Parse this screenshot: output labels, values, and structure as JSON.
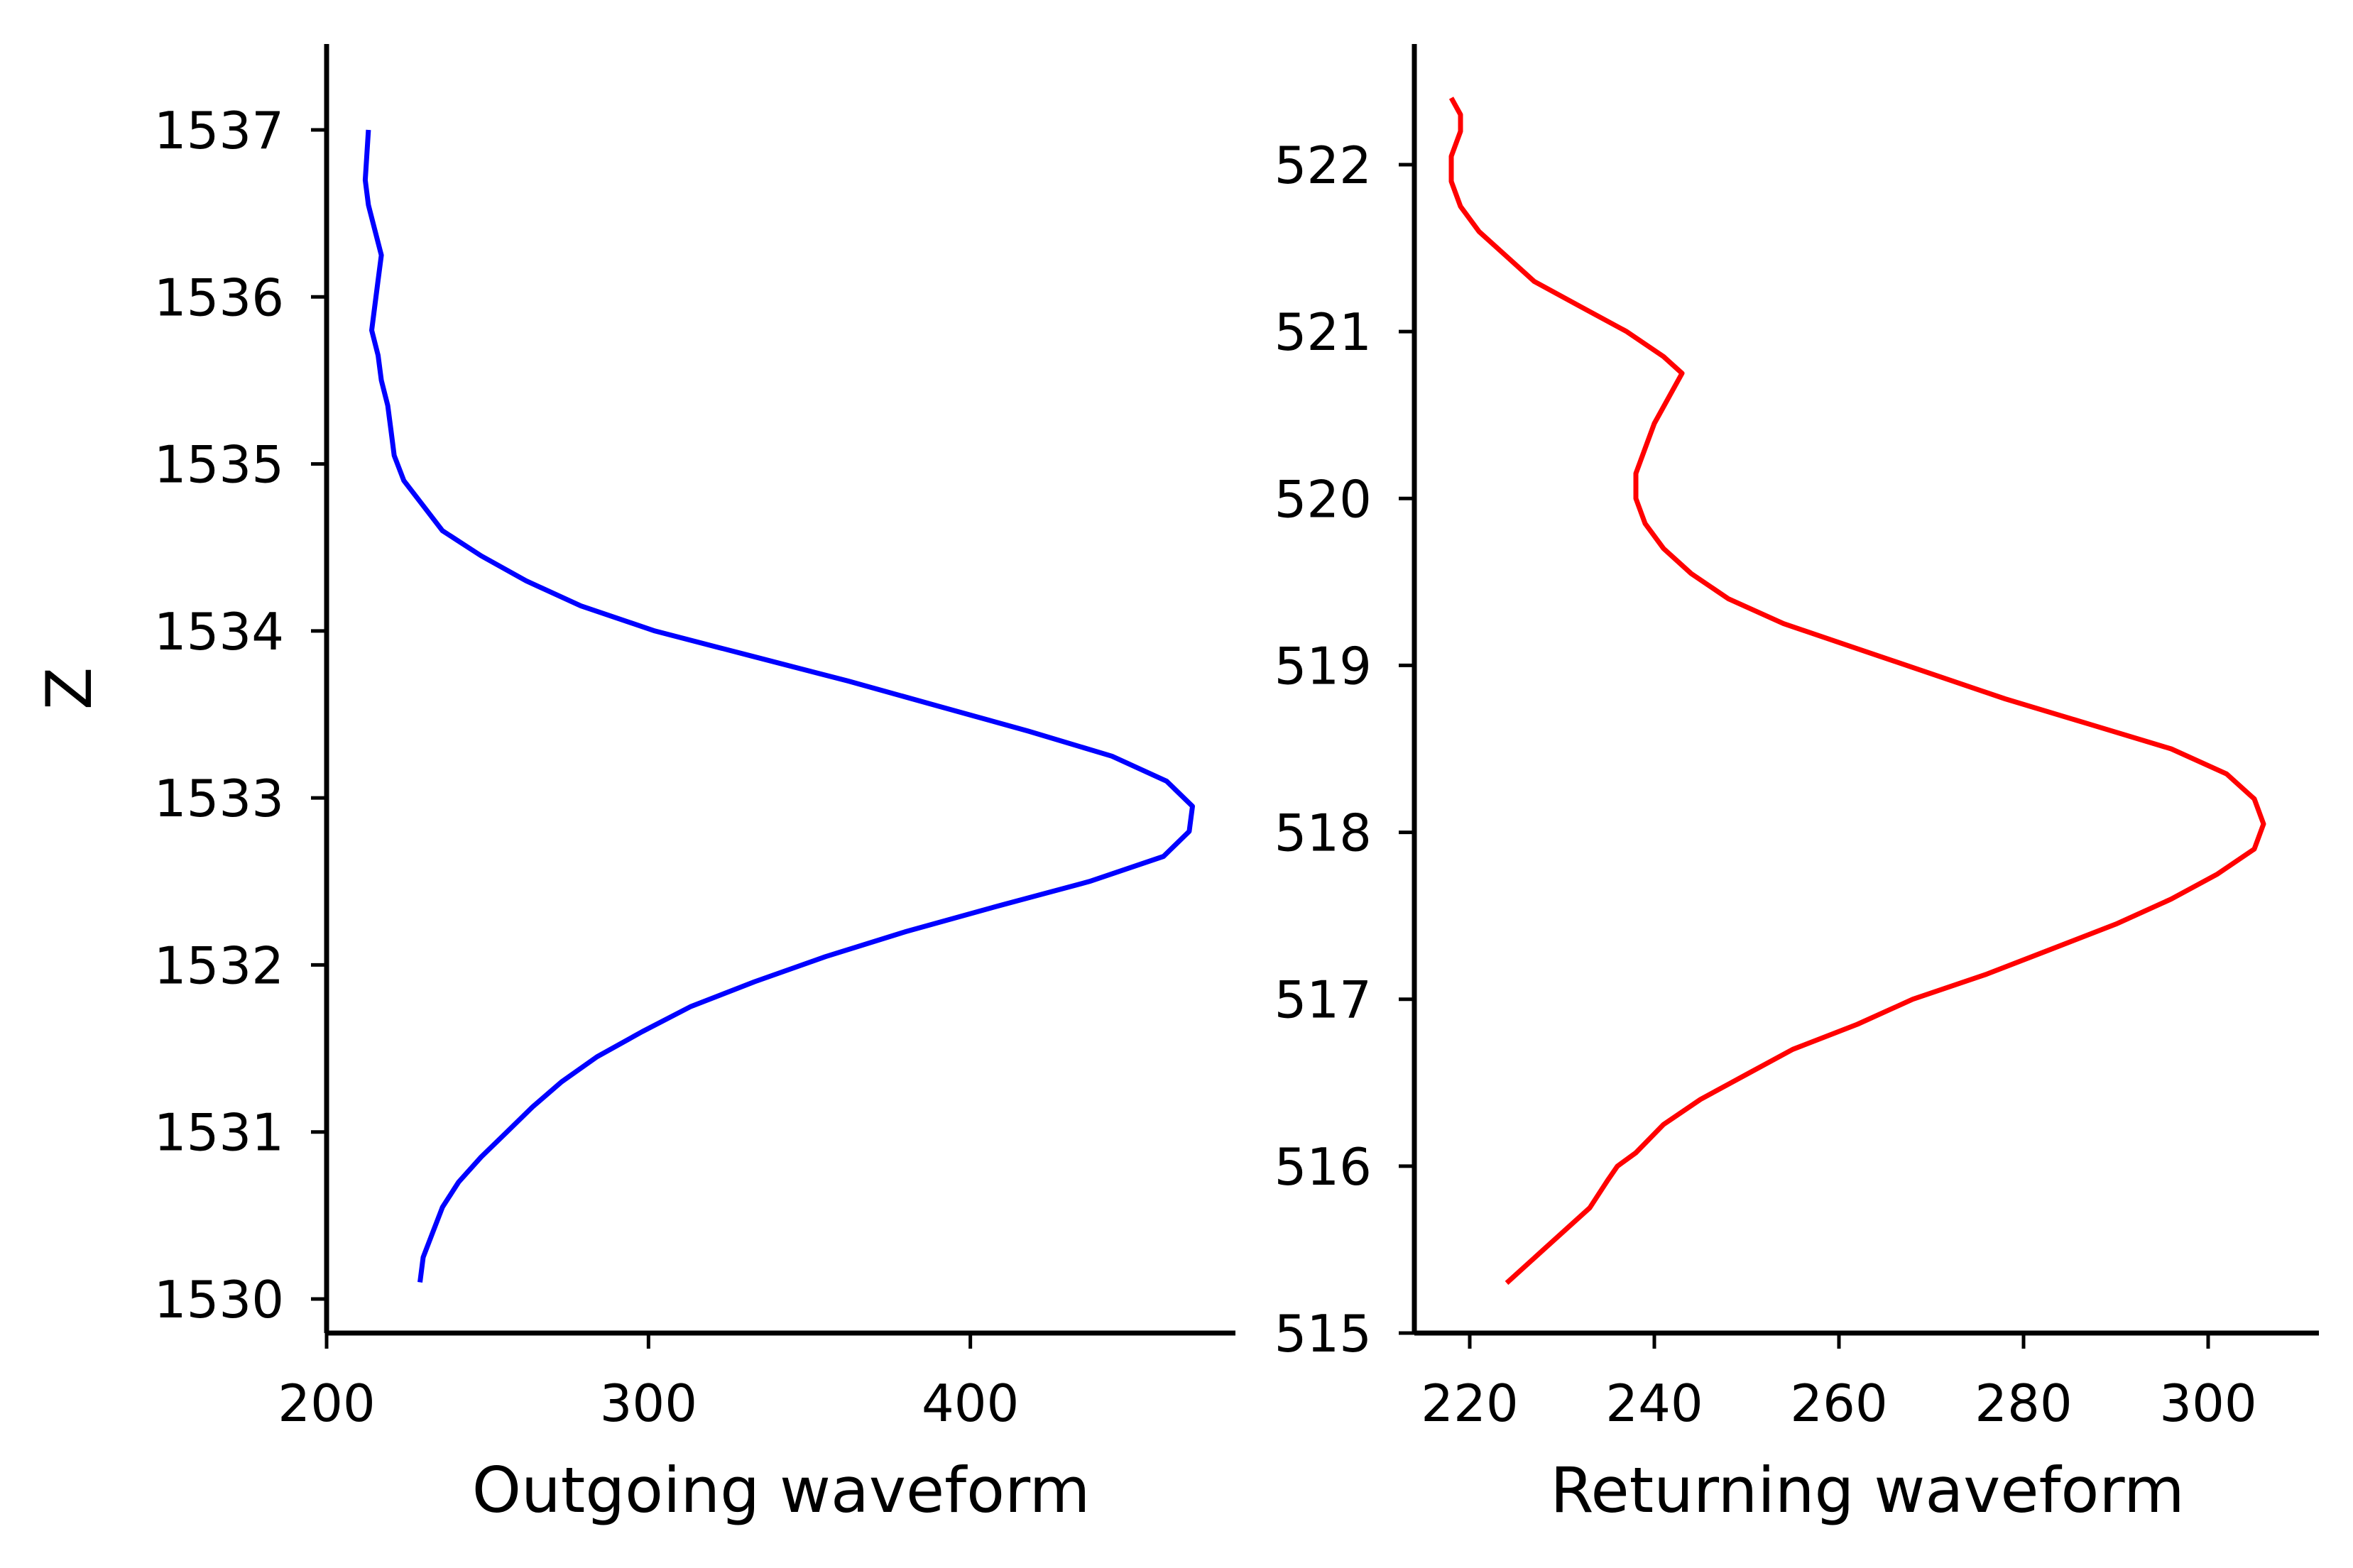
{
  "chart_data": [
    {
      "type": "line",
      "title": "",
      "xlabel": "Outgoing waveform",
      "ylabel": "Z",
      "xlim": [
        200,
        470
      ],
      "ylim": [
        1529.8,
        1537.5
      ],
      "xticks": [
        200,
        300,
        400
      ],
      "yticks": [
        1530,
        1531,
        1532,
        1533,
        1534,
        1535,
        1536,
        1537
      ],
      "grid": false,
      "series": [
        {
          "color": "#0000ff",
          "x": [
            229,
            230,
            233,
            236,
            241,
            248,
            256,
            264,
            273,
            284,
            298,
            313,
            333,
            355,
            380,
            408,
            437,
            460,
            468,
            469,
            461,
            444,
            418,
            390,
            362,
            332,
            302,
            279,
            262,
            248,
            236,
            230,
            224,
            221,
            220,
            219,
            217,
            216,
            214,
            215,
            216,
            217,
            215,
            213,
            212,
            213
          ],
          "y": [
            1530.1,
            1530.25,
            1530.4,
            1530.55,
            1530.7,
            1530.85,
            1531.0,
            1531.15,
            1531.3,
            1531.45,
            1531.6,
            1531.75,
            1531.9,
            1532.05,
            1532.2,
            1532.35,
            1532.5,
            1532.65,
            1532.8,
            1532.95,
            1533.1,
            1533.25,
            1533.4,
            1533.55,
            1533.7,
            1533.85,
            1534.0,
            1534.15,
            1534.3,
            1534.45,
            1534.6,
            1534.75,
            1534.9,
            1535.05,
            1535.2,
            1535.35,
            1535.5,
            1535.65,
            1535.8,
            1535.95,
            1536.1,
            1536.25,
            1536.4,
            1536.55,
            1536.7,
            1537.0
          ]
        }
      ]
    },
    {
      "type": "line",
      "title": "",
      "xlabel": "Returning waveform",
      "ylabel": "",
      "xlim": [
        214,
        312
      ],
      "ylim": [
        514.9,
        522.7
      ],
      "xticks": [
        220,
        240,
        260,
        280,
        300
      ],
      "yticks": [
        515,
        516,
        517,
        518,
        519,
        520,
        521,
        522
      ],
      "grid": false,
      "series": [
        {
          "color": "#ff0000",
          "x": [
            224,
            228,
            233,
            235,
            236,
            238,
            241,
            245,
            250,
            255,
            262,
            268,
            276,
            283,
            290,
            296,
            301,
            305,
            306,
            305,
            302,
            296,
            287,
            278,
            270,
            262,
            254,
            248,
            244,
            241,
            239,
            238,
            238,
            239,
            240,
            241,
            242,
            243,
            241,
            237,
            232,
            227,
            224,
            221,
            219,
            218,
            218,
            219,
            219,
            218
          ],
          "y": [
            515.3,
            515.5,
            515.75,
            515.92,
            516.0,
            516.08,
            516.25,
            516.4,
            516.55,
            516.7,
            516.85,
            517.0,
            517.15,
            517.3,
            517.45,
            517.6,
            517.75,
            517.9,
            518.05,
            518.2,
            518.35,
            518.5,
            518.65,
            518.8,
            518.95,
            519.1,
            519.25,
            519.4,
            519.55,
            519.7,
            519.85,
            520.0,
            520.15,
            520.3,
            520.45,
            520.55,
            520.65,
            520.75,
            520.85,
            521.0,
            521.15,
            521.3,
            521.45,
            521.6,
            521.75,
            521.9,
            522.05,
            522.2,
            522.3,
            522.4
          ]
        }
      ]
    }
  ]
}
